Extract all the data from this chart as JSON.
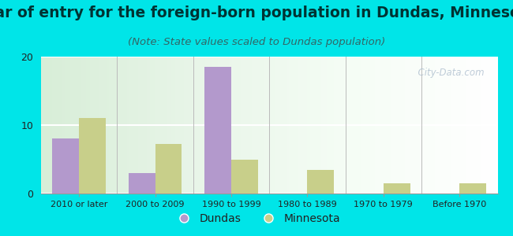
{
  "title": "Year of entry for the foreign-born population in Dundas, Minnesota",
  "subtitle": "(Note: State values scaled to Dundas population)",
  "categories": [
    "2010 or later",
    "2000 to 2009",
    "1990 to 1999",
    "1980 to 1989",
    "1970 to 1979",
    "Before 1970"
  ],
  "dundas_values": [
    8,
    3,
    18.5,
    0,
    0,
    0
  ],
  "minnesota_values": [
    11,
    7.2,
    5,
    3.5,
    1.5,
    1.5
  ],
  "dundas_color": "#b399cc",
  "minnesota_color": "#c8cf8a",
  "ylim": [
    0,
    20
  ],
  "yticks": [
    0,
    10,
    20
  ],
  "bg_outer": "#00e5e8",
  "watermark": "  City-Data.com",
  "bar_width": 0.35,
  "title_fontsize": 13.5,
  "subtitle_fontsize": 9.5,
  "title_color": "#003333",
  "subtitle_color": "#336666"
}
